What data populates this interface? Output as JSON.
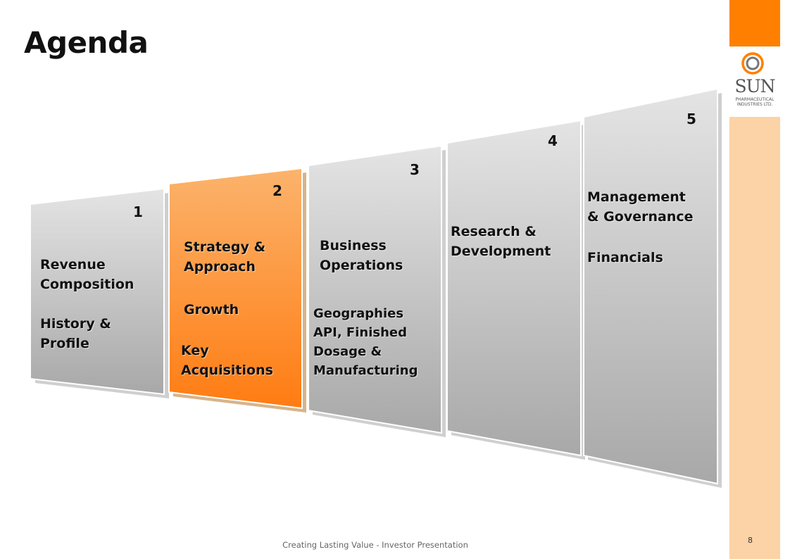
{
  "slide": {
    "title": "Agenda",
    "footer": "Creating Lasting Value - Investor Presentation",
    "page_number": "8"
  },
  "logo": {
    "name": "SUN",
    "line1": "PHARMACEUTICAL",
    "line2": "INDUSTRIES LTD."
  },
  "panels": [
    {
      "number": "1",
      "items": [
        "Revenue",
        "Composition",
        "",
        "History &",
        "Profile"
      ],
      "color": "gray"
    },
    {
      "number": "2",
      "items": [
        "Strategy &",
        "Approach",
        "",
        "Growth",
        "",
        "Key",
        "Acquisitions"
      ],
      "color": "orange"
    },
    {
      "number": "3",
      "items": [
        "Business",
        "Operations"
      ],
      "sub_items": [
        "Geographies",
        "API, Finished",
        "Dosage &",
        "Manufacturing"
      ],
      "color": "gray"
    },
    {
      "number": "4",
      "items": [
        "Research &",
        "Development"
      ],
      "color": "gray"
    },
    {
      "number": "5",
      "items": [
        "Management",
        "& Governance",
        "",
        "Financials"
      ],
      "color": "gray"
    }
  ],
  "colors": {
    "accent_orange": "#ff8000",
    "light_orange": "#fbd3a6",
    "panel_gray_top": "#e2e2e2",
    "panel_gray_bottom": "#a9a9a9"
  }
}
